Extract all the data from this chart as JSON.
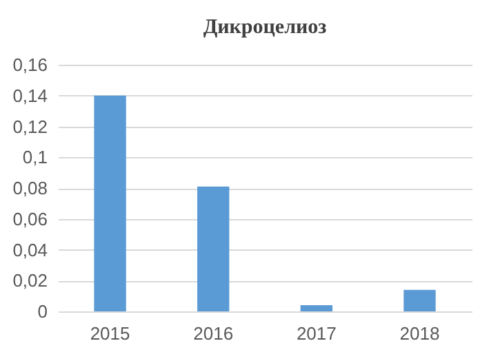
{
  "chart_data": {
    "type": "bar",
    "title": "Дикроцелиоз",
    "categories": [
      "2015",
      "2016",
      "2017",
      "2018"
    ],
    "values": [
      0.14,
      0.081,
      0.004,
      0.014
    ],
    "color": "#5b9bd5",
    "ylim": [
      0,
      0.16
    ],
    "yticks": [
      0,
      {
        "value": 0.02,
        "label": "0,02"
      },
      {
        "value": 0.04,
        "label": "0,04"
      },
      {
        "value": 0.06,
        "label": "0,06"
      },
      {
        "value": 0.08,
        "label": "0,08"
      },
      {
        "value": 0.1,
        "label": "0,1"
      },
      {
        "value": 0.12,
        "label": "0,12"
      },
      {
        "value": 0.14,
        "label": "0,14"
      },
      {
        "value": 0.16,
        "label": "0,16"
      }
    ],
    "grid": "y"
  }
}
